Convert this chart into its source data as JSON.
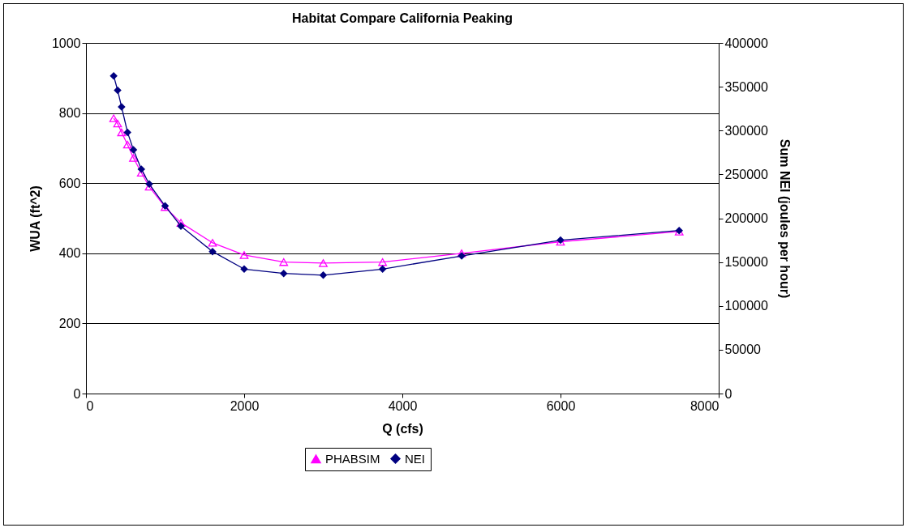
{
  "chart_data": {
    "type": "line",
    "title": "Habitat Compare California Peaking",
    "xlabel": "Q (cfs)",
    "ylabel": "WUA (ft^2)",
    "y2label": "Sum NEI (joules per hour)",
    "x": [
      350,
      400,
      450,
      525,
      600,
      700,
      800,
      1000,
      1200,
      1600,
      2000,
      2500,
      3000,
      3750,
      4750,
      6000,
      7500
    ],
    "series": [
      {
        "name": "PHABSIM",
        "color": "#ff00ff",
        "marker": "triangle",
        "values": [
          785,
          770,
          745,
          710,
          672,
          630,
          590,
          532,
          487,
          430,
          395,
          375,
          372,
          375,
          400,
          433,
          462
        ]
      },
      {
        "name": "NEI",
        "color": "#000080",
        "marker": "diamond",
        "axis": "y2",
        "values": [
          362400,
          346000,
          327000,
          298000,
          278000,
          256000,
          239000,
          214000,
          191000,
          162000,
          142000,
          137000,
          135000,
          142000,
          157000,
          175000,
          186000
        ]
      }
    ],
    "xlim": [
      0,
      8000
    ],
    "xticks": [
      0,
      2000,
      4000,
      6000,
      8000
    ],
    "ylim": [
      0,
      1000
    ],
    "yticks": [
      0,
      200,
      400,
      600,
      800,
      1000
    ],
    "y2lim": [
      0,
      400000
    ],
    "y2ticks": [
      0,
      50000,
      100000,
      150000,
      200000,
      250000,
      300000,
      350000,
      400000
    ],
    "grid": "y",
    "legend": "bottom"
  }
}
